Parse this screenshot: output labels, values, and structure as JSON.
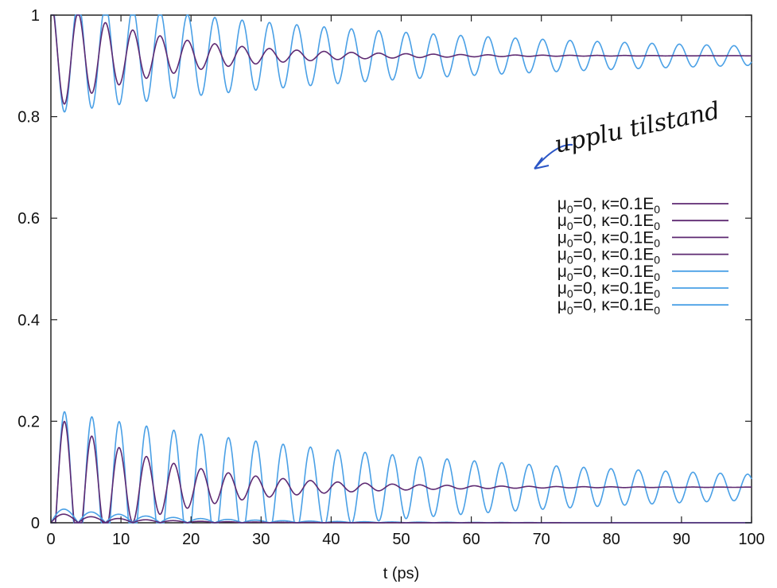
{
  "chart_data": {
    "type": "line",
    "title": "",
    "xlabel": "t (ps)",
    "ylabel": "",
    "xlim": [
      0,
      100
    ],
    "ylim": [
      0,
      1
    ],
    "x_ticks": [
      "0",
      "10",
      "20",
      "30",
      "40",
      "50",
      "60",
      "70",
      "80",
      "90",
      "100"
    ],
    "y_ticks": [
      "0",
      "0.2",
      "0.4",
      "0.6",
      "0.8",
      "1"
    ],
    "grid": false,
    "legend_position": "right",
    "legend": [
      {
        "mu": "μ",
        "mu_sub": "0",
        "mid": "=0, κ=0.1E",
        "e_sub": "0",
        "color": "#5e2a72"
      },
      {
        "mu": "μ",
        "mu_sub": "0",
        "mid": "=0, κ=0.1E",
        "e_sub": "0",
        "color": "#5e2a72"
      },
      {
        "mu": "μ",
        "mu_sub": "0",
        "mid": "=0, κ=0.1E",
        "e_sub": "0",
        "color": "#5e2a72"
      },
      {
        "mu": "μ",
        "mu_sub": "0",
        "mid": "=0, κ=0.1E",
        "e_sub": "0",
        "color": "#5e2a72"
      },
      {
        "mu": "μ",
        "mu_sub": "0",
        "mid": "=0, κ=0.1E",
        "e_sub": "0",
        "color": "#4aa0e6"
      },
      {
        "mu": "μ",
        "mu_sub": "0",
        "mid": "=0, κ=0.1E",
        "e_sub": "0",
        "color": "#4aa0e6"
      },
      {
        "mu": "μ",
        "mu_sub": "0",
        "mid": "=0, κ=0.1E",
        "e_sub": "0",
        "color": "#4aa0e6"
      }
    ],
    "series": [
      {
        "group": "upper",
        "color": "#4aa0e6",
        "start": 1.0,
        "steady": 0.92,
        "amp0": -0.1,
        "amp_early": -0.255,
        "period": 3.9,
        "decay": 0.018
      },
      {
        "group": "upper",
        "color": "#5e2a72",
        "start": 1.0,
        "steady": 0.92,
        "amp0": -0.08,
        "amp_early": -0.24,
        "period": 3.9,
        "decay": 0.065
      },
      {
        "group": "lower",
        "color": "#4aa0e6",
        "start": 0.0,
        "steady": 0.07,
        "amp0": 0.18,
        "amp_early": 0.22,
        "period": 3.9,
        "decay": 0.018
      },
      {
        "group": "lower",
        "color": "#5e2a72",
        "start": 0.0,
        "steady": 0.07,
        "amp0": 0.14,
        "amp_early": 0.21,
        "period": 3.9,
        "decay": 0.065
      },
      {
        "group": "bottom",
        "color": "#4aa0e6",
        "start": 0.0,
        "steady": 0.0,
        "amp0": 0.03,
        "amp_early": 0.03,
        "period": 3.9,
        "decay": 0.06
      },
      {
        "group": "bottom",
        "color": "#5e2a72",
        "start": 0.0,
        "steady": 0.0,
        "amp0": 0.02,
        "amp_early": 0.02,
        "period": 3.9,
        "decay": 0.09
      }
    ],
    "annotations": {
      "handwritten_note": "upplu tilstand"
    }
  }
}
